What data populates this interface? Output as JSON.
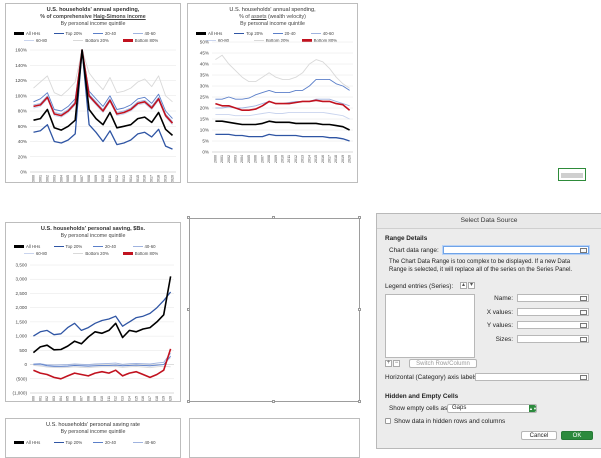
{
  "charts": [
    {
      "title": "U.S. households' annual spending,",
      "subtitle_prefix": "% of comprehensive ",
      "subtitle_link": "Haig-Simons income",
      "subtitle2": "By personal income quintile",
      "legend": [
        "All HHs",
        "Top 20%",
        "20-40",
        "40-60",
        "60-80",
        "Bottom 20%",
        "Bottom 80%"
      ]
    },
    {
      "title": "U.S. households' annual spending,",
      "subtitle_prefix": "% of ",
      "subtitle_link": "assets",
      "subtitle_suffix": " (wealth velocity)",
      "subtitle2": "By personal income quintile",
      "legend": [
        "All HHs",
        "Top 20%",
        "20-40",
        "40-60",
        "60-80",
        "Bottom 20%",
        "Bottom 80%"
      ]
    },
    {
      "title": "U.S. households' personal saving, $Bs.",
      "subtitle2": "By personal income quintile",
      "legend": [
        "All HHs",
        "Top 20%",
        "20-40",
        "40-60",
        "60-80",
        "Bottom 20%",
        "Bottom 80%"
      ]
    },
    {
      "title": "U.S. households' personal saving rate",
      "subtitle2": "By personal income quintile",
      "legend": [
        "All HHs",
        "Top 20%",
        "20-40",
        "40-60"
      ]
    }
  ],
  "series_colors": {
    "All HHs": "#000000",
    "Top 20%": "#2f55a4",
    "20-40": "#5b7fc9",
    "40-60": "#9fb3df",
    "60-80": "#c9d4ee",
    "Bottom 20%": "#d9d9d9",
    "Bottom 80%": "#c1121f"
  },
  "chart_data": [
    {
      "type": "line",
      "title": "U.S. households' annual spending, % of comprehensive Haig-Simons income",
      "subtitle": "By personal income quintile",
      "x": [
        "2000",
        "2001",
        "2002",
        "2003",
        "2004",
        "2005",
        "2006",
        "2007",
        "2008",
        "2009",
        "2010",
        "2011",
        "2012",
        "2013",
        "2014",
        "2015",
        "2016",
        "2017",
        "2018",
        "2019",
        "2020"
      ],
      "ylim": [
        0,
        160
      ],
      "yticks": [
        "0%",
        "20%",
        "40%",
        "60%",
        "80%",
        "100%",
        "120%",
        "140%",
        "160%"
      ],
      "series": [
        {
          "name": "All HHs",
          "values": [
            68,
            70,
            82,
            58,
            55,
            60,
            68,
            160,
            82,
            70,
            62,
            78,
            58,
            60,
            62,
            70,
            72,
            65,
            78,
            56,
            48
          ]
        },
        {
          "name": "Top 20%",
          "values": [
            52,
            54,
            62,
            40,
            38,
            42,
            50,
            160,
            62,
            52,
            40,
            54,
            36,
            38,
            42,
            50,
            52,
            46,
            56,
            34,
            30
          ]
        },
        {
          "name": "20-40",
          "values": [
            92,
            96,
            104,
            82,
            80,
            86,
            96,
            160,
            106,
            96,
            86,
            100,
            82,
            84,
            88,
            96,
            98,
            90,
            102,
            80,
            70
          ]
        },
        {
          "name": "40-60",
          "values": [
            88,
            90,
            100,
            78,
            76,
            82,
            92,
            160,
            102,
            92,
            82,
            96,
            78,
            80,
            84,
            92,
            94,
            86,
            98,
            76,
            66
          ]
        },
        {
          "name": "60-80",
          "values": [
            84,
            86,
            96,
            74,
            72,
            78,
            88,
            160,
            98,
            88,
            78,
            92,
            74,
            76,
            80,
            88,
            90,
            82,
            94,
            72,
            62
          ]
        },
        {
          "name": "Bottom 20%",
          "values": [
            110,
            118,
            126,
            104,
            100,
            108,
            118,
            160,
            130,
            118,
            108,
            124,
            104,
            106,
            110,
            118,
            122,
            112,
            126,
            100,
            92
          ]
        },
        {
          "name": "Bottom 80%",
          "values": [
            86,
            88,
            98,
            76,
            74,
            80,
            90,
            160,
            100,
            90,
            80,
            94,
            76,
            78,
            82,
            90,
            92,
            84,
            96,
            74,
            64
          ]
        }
      ]
    },
    {
      "type": "line",
      "title": "U.S. households' annual spending, % of assets (wealth velocity)",
      "subtitle": "By personal income quintile",
      "x": [
        "2000",
        "2001",
        "2002",
        "2003",
        "2004",
        "2005",
        "2006",
        "2007",
        "2008",
        "2009",
        "2010",
        "2011",
        "2012",
        "2013",
        "2014",
        "2015",
        "2016",
        "2017",
        "2018",
        "2019",
        "2020"
      ],
      "ylim": [
        0,
        50
      ],
      "yticks": [
        "0%",
        "5%",
        "10%",
        "15%",
        "20%",
        "25%",
        "30%",
        "35%",
        "40%",
        "45%",
        "50%"
      ],
      "series": [
        {
          "name": "All HHs",
          "values": [
            14,
            14,
            13.5,
            13,
            12.5,
            12.5,
            12.5,
            13,
            14,
            13.5,
            13.5,
            13.5,
            13,
            13,
            13,
            13,
            12.5,
            12.5,
            12,
            11.5,
            10
          ]
        },
        {
          "name": "Top 20%",
          "values": [
            8,
            8,
            8,
            7.5,
            7.5,
            7,
            7,
            7,
            8,
            7.5,
            7.5,
            7.5,
            7.5,
            7,
            7,
            7,
            7,
            6.5,
            6.5,
            6,
            5
          ]
        },
        {
          "name": "20-40",
          "values": [
            24,
            24,
            25,
            24,
            24,
            24.5,
            26,
            27,
            28,
            27,
            27,
            27,
            28,
            28,
            30,
            33,
            33,
            33,
            31,
            30,
            28
          ]
        },
        {
          "name": "40-60",
          "values": [
            20,
            20,
            20.5,
            20,
            20,
            20.5,
            21,
            22,
            23,
            22,
            22,
            22.5,
            23,
            23,
            23,
            24,
            24,
            24,
            23,
            22,
            21
          ]
        },
        {
          "name": "60-80",
          "values": [
            17,
            17,
            17,
            16.5,
            16.5,
            16.5,
            17,
            17.5,
            18,
            17.5,
            17.5,
            18,
            18,
            18,
            18,
            18,
            18,
            17.5,
            17,
            16.5,
            15
          ]
        },
        {
          "name": "Bottom 20%",
          "values": [
            42,
            44,
            40,
            37,
            34,
            32,
            32,
            34,
            36,
            34,
            33,
            33,
            34,
            36,
            40,
            42,
            41,
            38,
            34,
            31,
            29
          ]
        },
        {
          "name": "Bottom 80%",
          "values": [
            22,
            21,
            21,
            20,
            19,
            19,
            19.5,
            21,
            23,
            22,
            22,
            22,
            22.5,
            23,
            23,
            23.5,
            23,
            23,
            22,
            21.5,
            19
          ]
        }
      ]
    },
    {
      "type": "line",
      "title": "U.S. households' personal saving, $Bs.",
      "subtitle": "By personal income quintile",
      "x": [
        "2000",
        "2001",
        "2002",
        "2003",
        "2004",
        "2005",
        "2006",
        "2007",
        "2008",
        "2009",
        "2010",
        "2011",
        "2012",
        "2013",
        "2014",
        "2015",
        "2016",
        "2017",
        "2018",
        "2019",
        "2020"
      ],
      "ylim": [
        -1000,
        3500
      ],
      "yticks": [
        "(1,000)",
        "(500)",
        "0",
        "500",
        "1,000",
        "1,500",
        "2,000",
        "2,500",
        "3,000",
        "3,500"
      ],
      "series": [
        {
          "name": "All HHs",
          "values": [
            420,
            620,
            680,
            520,
            530,
            650,
            820,
            730,
            970,
            1150,
            1100,
            1200,
            1450,
            950,
            1200,
            1150,
            1250,
            1300,
            1500,
            1750,
            3100
          ]
        },
        {
          "name": "Top 20%",
          "values": [
            1000,
            1150,
            1200,
            1050,
            1080,
            1300,
            1450,
            1200,
            1300,
            1450,
            1550,
            1600,
            1700,
            1350,
            1500,
            1650,
            1700,
            1800,
            2000,
            2250,
            2550
          ]
        },
        {
          "name": "20-40",
          "values": [
            10,
            20,
            -40,
            -60,
            -60,
            -50,
            -30,
            -40,
            -50,
            -40,
            -30,
            -30,
            -20,
            -40,
            -30,
            -20,
            -30,
            -40,
            -20,
            0,
            300
          ]
        },
        {
          "name": "40-60",
          "values": [
            20,
            30,
            -10,
            -20,
            -10,
            0,
            20,
            10,
            0,
            20,
            30,
            40,
            50,
            10,
            30,
            40,
            30,
            20,
            50,
            80,
            400
          ]
        },
        {
          "name": "60-80",
          "values": [
            0,
            -20,
            -60,
            -80,
            -80,
            -70,
            -40,
            -60,
            -70,
            -50,
            -40,
            -40,
            -30,
            -60,
            -40,
            -30,
            -40,
            -60,
            -30,
            0,
            250
          ]
        },
        {
          "name": "Bottom 20%",
          "values": [
            -30,
            -50,
            -90,
            -100,
            -110,
            -100,
            -80,
            -100,
            -110,
            -90,
            -80,
            -80,
            -70,
            -100,
            -80,
            -70,
            -90,
            -110,
            -80,
            -60,
            -80
          ]
        },
        {
          "name": "Bottom 80%",
          "values": [
            -200,
            -300,
            -350,
            -450,
            -500,
            -400,
            -300,
            -350,
            -400,
            -300,
            -250,
            -300,
            -200,
            -400,
            -300,
            -250,
            -350,
            -450,
            -350,
            -200,
            550
          ]
        }
      ]
    }
  ],
  "dialog": {
    "title": "Select Data Source",
    "range_details": "Range Details",
    "chart_data_range_label": "Chart data range:",
    "chart_data_range_value": "",
    "message_line1": "The Chart Data Range is too complex to be displayed. If a new Data",
    "message_line2": "Range is selected, it will replace all of the series on the Series Panel.",
    "legend_entries_label": "Legend entries (Series):",
    "name_label": "Name:",
    "xvalues_label": "X values:",
    "yvalues_label": "Y values:",
    "sizes_label": "Sizes:",
    "add_symbol": "+",
    "remove_symbol": "−",
    "switch_row_column": "Switch Row/Column",
    "horizontal_axis_label": "Horizontal (Category) axis labels:",
    "hidden_empty_cells": "Hidden and Empty Cells",
    "show_empty_cells_label": "Show empty cells as:",
    "show_empty_cells_value": "Gaps",
    "show_hidden_label": "Show data in hidden rows and columns",
    "cancel": "Cancel",
    "ok": "OK"
  }
}
